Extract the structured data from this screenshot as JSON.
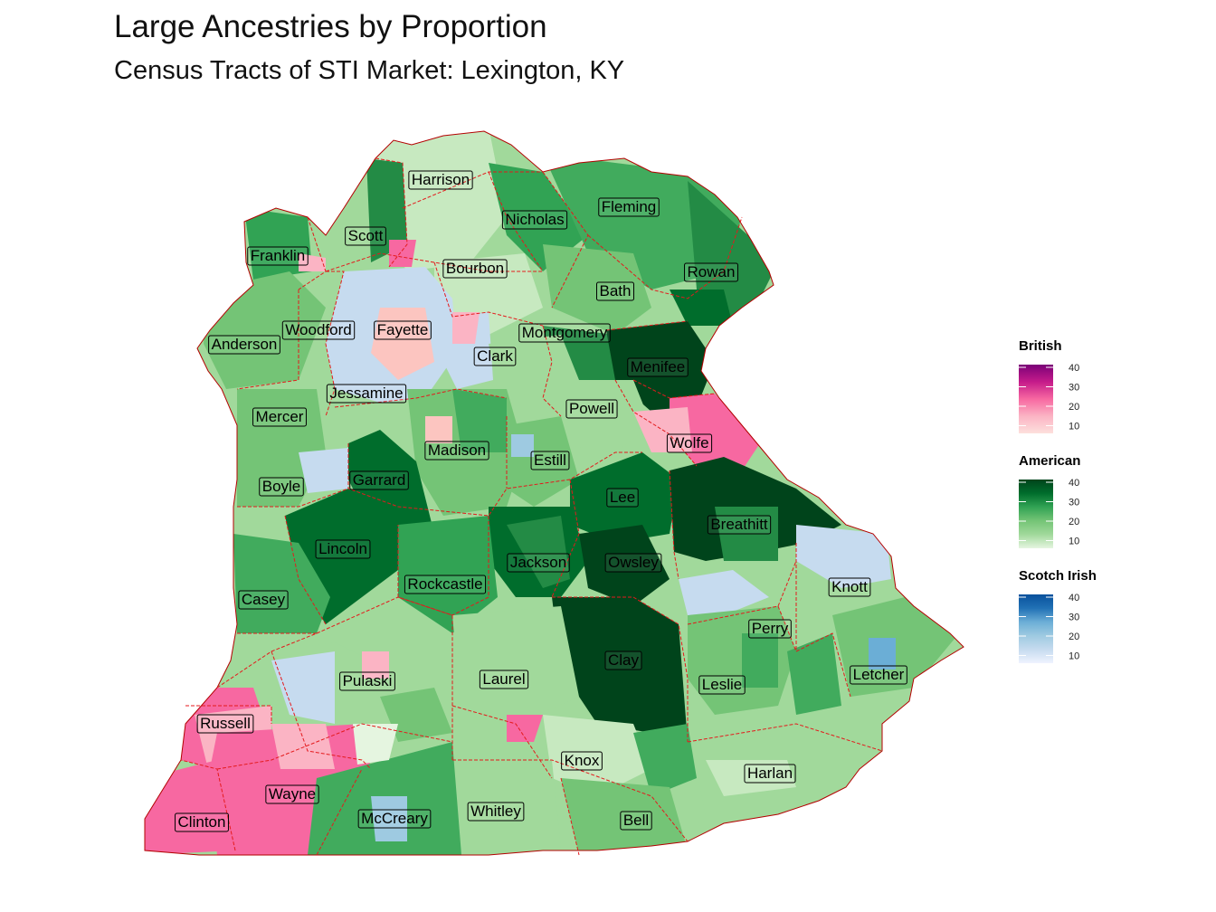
{
  "title": "Large Ancestries by Proportion",
  "subtitle": "Census Tracts of STI Market: Lexington, KY",
  "colors": {
    "border": "#e41a1c",
    "british": [
      "#fde0dd",
      "#fbb4c4",
      "#f768a1",
      "#c51b8a",
      "#7a0177"
    ],
    "american": [
      "#e5f5e0",
      "#a1d99b",
      "#74c476",
      "#31a354",
      "#006d2c",
      "#00441b"
    ],
    "scotch_irish": [
      "#eff3ff",
      "#c6dbef",
      "#9ecae1",
      "#6baed6",
      "#2171b5",
      "#08519c"
    ]
  },
  "legends": [
    {
      "title": "British",
      "ticks": [
        "40",
        "30",
        "20",
        "10"
      ],
      "palette": "british"
    },
    {
      "title": "American",
      "ticks": [
        "40",
        "30",
        "20",
        "10"
      ],
      "palette": "american"
    },
    {
      "title": "Scotch Irish",
      "ticks": [
        "40",
        "30",
        "20",
        "10"
      ],
      "palette": "scotch_irish"
    }
  ],
  "counties": [
    {
      "name": "Harrison",
      "ancestry": "American",
      "value": 15
    },
    {
      "name": "Nicholas",
      "ancestry": "American",
      "value": 28
    },
    {
      "name": "Fleming",
      "ancestry": "American",
      "value": 26
    },
    {
      "name": "Scott",
      "ancestry": "American",
      "value": 20
    },
    {
      "name": "Franklin",
      "ancestry": "American",
      "value": 22
    },
    {
      "name": "Bourbon",
      "ancestry": "American",
      "value": 14
    },
    {
      "name": "Rowan",
      "ancestry": "American",
      "value": 30
    },
    {
      "name": "Bath",
      "ancestry": "American",
      "value": 24
    },
    {
      "name": "Woodford",
      "ancestry": "American",
      "value": 18
    },
    {
      "name": "Fayette",
      "ancestry": "Scotch Irish",
      "value": 12
    },
    {
      "name": "Anderson",
      "ancestry": "American",
      "value": 20
    },
    {
      "name": "Montgomery",
      "ancestry": "American",
      "value": 26
    },
    {
      "name": "Clark",
      "ancestry": "American",
      "value": 14
    },
    {
      "name": "Menifee",
      "ancestry": "American",
      "value": 40
    },
    {
      "name": "Jessamine",
      "ancestry": "Scotch Irish",
      "value": 12
    },
    {
      "name": "Mercer",
      "ancestry": "American",
      "value": 22
    },
    {
      "name": "Powell",
      "ancestry": "American",
      "value": 14
    },
    {
      "name": "Wolfe",
      "ancestry": "British",
      "value": 18
    },
    {
      "name": "Madison",
      "ancestry": "American",
      "value": 20
    },
    {
      "name": "Estill",
      "ancestry": "American",
      "value": 18
    },
    {
      "name": "Boyle",
      "ancestry": "American",
      "value": 22
    },
    {
      "name": "Garrard",
      "ancestry": "American",
      "value": 40
    },
    {
      "name": "Lee",
      "ancestry": "American",
      "value": 38
    },
    {
      "name": "Breathitt",
      "ancestry": "American",
      "value": 40
    },
    {
      "name": "Lincoln",
      "ancestry": "American",
      "value": 40
    },
    {
      "name": "Jackson",
      "ancestry": "American",
      "value": 36
    },
    {
      "name": "Owsley",
      "ancestry": "American",
      "value": 42
    },
    {
      "name": "Rockcastle",
      "ancestry": "American",
      "value": 28
    },
    {
      "name": "Knott",
      "ancestry": "American",
      "value": 14
    },
    {
      "name": "Casey",
      "ancestry": "American",
      "value": 22
    },
    {
      "name": "Perry",
      "ancestry": "American",
      "value": 14
    },
    {
      "name": "Clay",
      "ancestry": "American",
      "value": 44
    },
    {
      "name": "Letcher",
      "ancestry": "American",
      "value": 18
    },
    {
      "name": "Pulaski",
      "ancestry": "American",
      "value": 14
    },
    {
      "name": "Laurel",
      "ancestry": "American",
      "value": 14
    },
    {
      "name": "Leslie",
      "ancestry": "American",
      "value": 18
    },
    {
      "name": "Russell",
      "ancestry": "American",
      "value": 16
    },
    {
      "name": "Knox",
      "ancestry": "American",
      "value": 12
    },
    {
      "name": "Harlan",
      "ancestry": "American",
      "value": 12
    },
    {
      "name": "Wayne",
      "ancestry": "British",
      "value": 22
    },
    {
      "name": "Whitley",
      "ancestry": "American",
      "value": 14
    },
    {
      "name": "Clinton",
      "ancestry": "British",
      "value": 20
    },
    {
      "name": "McCreary",
      "ancestry": "American",
      "value": 20
    },
    {
      "name": "Bell",
      "ancestry": "American",
      "value": 16
    }
  ]
}
